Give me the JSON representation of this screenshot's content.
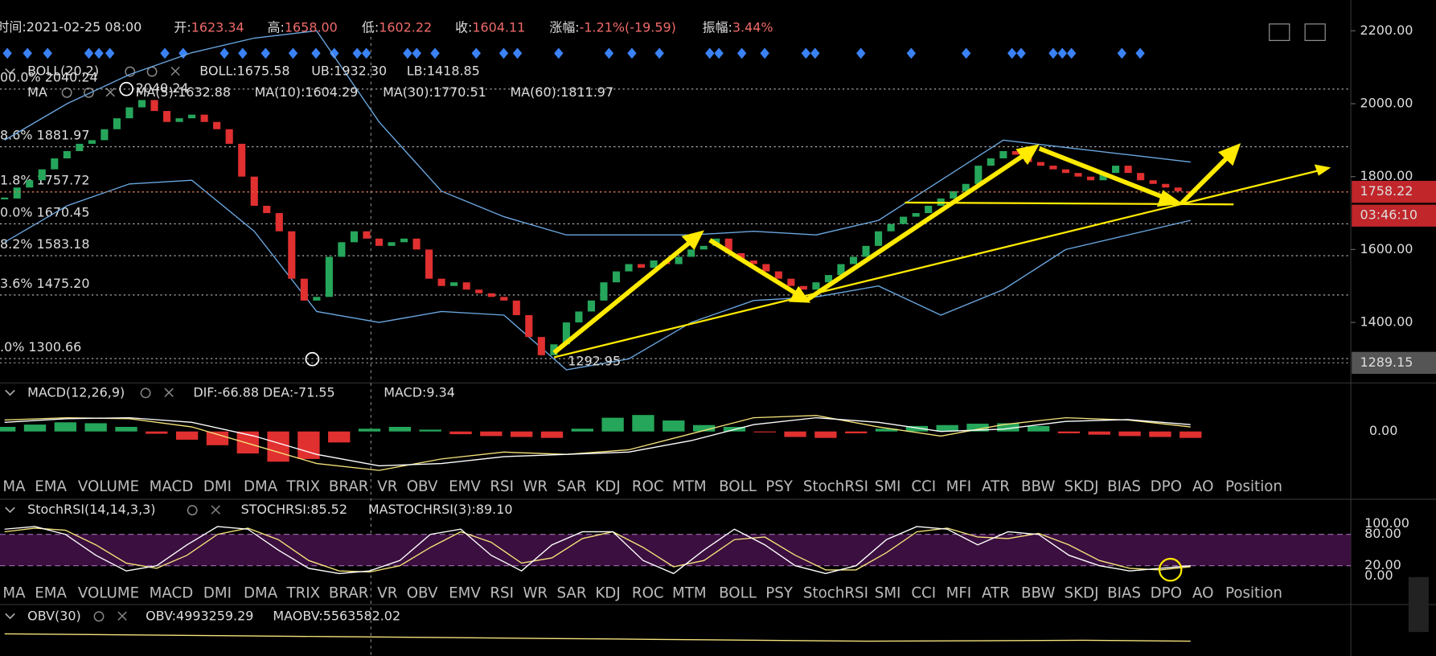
{
  "header": {
    "time": "时间:2021-02-25 08:00",
    "open_label": "开:",
    "open": "1623.34",
    "high_label": "高:",
    "high": "1658.00",
    "low_label": "低:",
    "low": "1602.22",
    "close_label": "收:",
    "close": "1604.11",
    "change_label": "涨幅:",
    "change": "-1.21%(-19.59)",
    "amp_label": "振幅:",
    "amp": "3.44%"
  },
  "boll_legend": {
    "name": "BOLL(20,2)",
    "boll": "BOLL:1675.58",
    "ub": "UB:1932.30",
    "lb": "LB:1418.85"
  },
  "ma_legend": {
    "name": "MA",
    "ma5": "MA(5):1632.88",
    "ma10": "MA(10):1604.29",
    "ma30": "MA(30):1770.51",
    "ma60": "MA(60):1811.97"
  },
  "chart_data": {
    "type": "candlestick",
    "closes": [
      1740,
      1770,
      1790,
      1820,
      1850,
      1870,
      1890,
      1900,
      1930,
      1960,
      1990,
      2010,
      1980,
      1950,
      1960,
      1970,
      1950,
      1930,
      1890,
      1800,
      1720,
      1700,
      1650,
      1520,
      1460,
      1470,
      1580,
      1620,
      1650,
      1630,
      1610,
      1620,
      1630,
      1600,
      1520,
      1500,
      1510,
      1490,
      1480,
      1470,
      1460,
      1420,
      1360,
      1310,
      1340,
      1400,
      1430,
      1460,
      1510,
      1540,
      1560,
      1550,
      1570,
      1560,
      1580,
      1600,
      1610,
      1630,
      1590,
      1570,
      1560,
      1540,
      1520,
      1500,
      1490,
      1510,
      1530,
      1560,
      1580,
      1610,
      1650,
      1670,
      1690,
      1700,
      1720,
      1740,
      1760,
      1780,
      1830,
      1850,
      1870,
      1860,
      1840,
      1830,
      1820,
      1810,
      1800,
      1790,
      1810,
      1830,
      1810,
      1790,
      1780,
      1770,
      1760,
      1755
    ],
    "boll_upper": [
      1900,
      2000,
      2080,
      2140,
      2180,
      2200,
      1950,
      1760,
      1690,
      1640,
      1640,
      1640,
      1650,
      1640,
      1680,
      1790,
      1900,
      1880,
      1860,
      1840
    ],
    "boll_lower": [
      1620,
      1720,
      1780,
      1790,
      1650,
      1430,
      1400,
      1430,
      1420,
      1270,
      1300,
      1400,
      1460,
      1470,
      1500,
      1420,
      1490,
      1600,
      1640,
      1680
    ],
    "ylim": [
      1234,
      2284
    ],
    "yticks": [
      {
        "value": 2200,
        "label": "2200.00"
      },
      {
        "value": 2000,
        "label": "2000.00"
      },
      {
        "value": 1800,
        "label": "1800.00"
      },
      {
        "value": 1600,
        "label": "1600.00"
      },
      {
        "value": 1400,
        "label": "1400.00"
      }
    ],
    "fib_levels": [
      {
        "label": "00.0% 2040.24",
        "value": 2040.24
      },
      {
        "label": "8.6% 1881.97",
        "value": 1881.97
      },
      {
        "label": "1.8% 1757.72",
        "value": 1757.72
      },
      {
        "label": "0.0% 1670.45",
        "value": 1670.45
      },
      {
        "label": "8.2% 1583.18",
        "value": 1583.18
      },
      {
        "label": "3.6% 1475.20",
        "value": 1475.2
      },
      {
        "label": ".0% 1300.66",
        "value": 1300.66
      }
    ],
    "last_price": {
      "value": 1758.22,
      "label": "1758.22"
    },
    "countdown": "03:46:10",
    "low_tag": {
      "value": 1289.15,
      "label": "1289.15"
    },
    "high_note": "2040.24",
    "low_note": "1292.95"
  },
  "macd": {
    "legend": {
      "name": "MACD(12,26,9)",
      "dif": "DIF:-66.88",
      "dea": "DEA:-71.55",
      "macd": "MACD:9.34"
    },
    "hist": [
      10,
      15,
      20,
      18,
      10,
      -5,
      -18,
      -30,
      -48,
      -66,
      -60,
      -24,
      6,
      10,
      4,
      -6,
      -10,
      -12,
      -14,
      6,
      30,
      36,
      24,
      14,
      10,
      -2,
      -12,
      -14,
      -4,
      6,
      12,
      14,
      17,
      18,
      12,
      -4,
      -7,
      -10,
      -12,
      -14
    ],
    "dif": [
      25,
      30,
      28,
      10,
      -30,
      -70,
      -85,
      -60,
      -45,
      -50,
      -40,
      -5,
      30,
      35,
      10,
      -10,
      15,
      30,
      25,
      10
    ],
    "dea": [
      20,
      28,
      30,
      20,
      -10,
      -50,
      -75,
      -70,
      -55,
      -50,
      -45,
      -20,
      15,
      30,
      20,
      0,
      5,
      22,
      26,
      15
    ],
    "ylim": [
      -80,
      80
    ],
    "yticks": [
      {
        "value": 0,
        "label": "0.00"
      }
    ]
  },
  "tabs": [
    "MA",
    "EMA",
    "VOLUME",
    "MACD",
    "DMI",
    "DMA",
    "TRIX",
    "BRAR",
    "VR",
    "OBV",
    "EMV",
    "RSI",
    "WR",
    "SAR",
    "KDJ",
    "ROC",
    "MTM",
    "BOLL",
    "PSY",
    "StochRSI",
    "SMI",
    "CCI",
    "MFI",
    "ATR",
    "BBW",
    "SKDJ",
    "BIAS",
    "DPO",
    "AO",
    "Position"
  ],
  "stochrsi": {
    "legend": {
      "name": "StochRSI(14,14,3,3)",
      "k": "STOCHRSI:85.52",
      "d": "MASTOCHRSI(3):89.10"
    },
    "k": [
      90,
      95,
      80,
      40,
      10,
      20,
      60,
      95,
      90,
      50,
      15,
      5,
      10,
      30,
      80,
      90,
      40,
      10,
      60,
      85,
      85,
      30,
      5,
      50,
      90,
      60,
      20,
      5,
      20,
      70,
      95,
      90,
      60,
      85,
      80,
      40,
      20,
      10,
      15,
      20
    ],
    "d": [
      85,
      92,
      88,
      60,
      25,
      15,
      40,
      80,
      92,
      70,
      30,
      10,
      8,
      20,
      55,
      85,
      65,
      25,
      35,
      72,
      85,
      55,
      18,
      30,
      70,
      75,
      40,
      12,
      12,
      45,
      85,
      92,
      75,
      72,
      82,
      60,
      30,
      15,
      12,
      18
    ],
    "ylim": [
      0,
      100
    ],
    "band": [
      20,
      80
    ],
    "yticks": [
      {
        "value": 100,
        "label": "100.00"
      },
      {
        "value": 80,
        "label": "80.00"
      },
      {
        "value": 20,
        "label": "20.00"
      },
      {
        "value": 0,
        "label": "0.00"
      }
    ]
  },
  "obv": {
    "legend": {
      "name": "OBV(30)",
      "obv": "OBV:4993259.29",
      "maobv": "MAOBV:5563582.02"
    },
    "values": [
      5900000,
      5850000,
      5800000,
      5750000,
      5700000,
      5650000,
      5600000,
      5550000,
      5500000,
      5520000,
      5550000,
      5500000
    ]
  }
}
